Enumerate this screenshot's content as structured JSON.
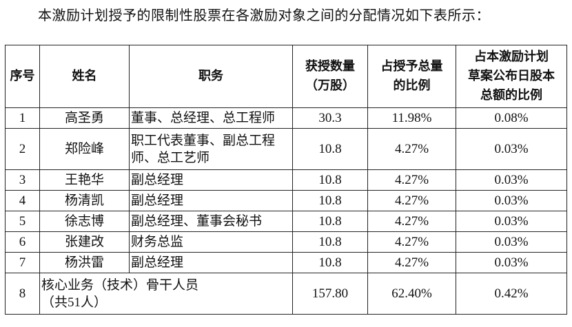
{
  "intro": "本激励计划授予的限制性股票在各激励对象之间的分配情况如下表所示：",
  "table": {
    "header": [
      [
        "序号"
      ],
      [
        "姓名"
      ],
      [
        "职务"
      ],
      [
        "获授数量",
        "（万股）"
      ],
      [
        "占授予总量",
        "的比例"
      ],
      [
        "占本激励计划",
        "草案公布日股本",
        "总额的比例"
      ]
    ],
    "rows": [
      [
        "1",
        "高圣勇",
        "董事、总经理、总工程师",
        "30.3",
        "11.98%",
        "0.08%"
      ],
      [
        "2",
        "郑险峰",
        [
          "职工代表董事、副总工程",
          "师、总工艺师"
        ],
        "10.8",
        "4.27%",
        "0.03%"
      ],
      [
        "3",
        "王艳华",
        "副总经理",
        "10.8",
        "4.27%",
        "0.03%"
      ],
      [
        "4",
        "杨清凯",
        "副总经理",
        "10.8",
        "4.27%",
        "0.03%"
      ],
      [
        "5",
        "徐志博",
        "副总经理、董事会秘书",
        "10.8",
        "4.27%",
        "0.03%"
      ],
      [
        "6",
        "张建改",
        "财务总监",
        "10.8",
        "4.27%",
        "0.03%"
      ],
      [
        "7",
        "杨洪雷",
        "副总经理",
        "10.8",
        "4.27%",
        "0.03%"
      ],
      [
        "8",
        [
          "核心业务（技术）骨干人员",
          "（共51人）"
        ],
        "157.80",
        "62.40%",
        "0.42%"
      ]
    ]
  }
}
